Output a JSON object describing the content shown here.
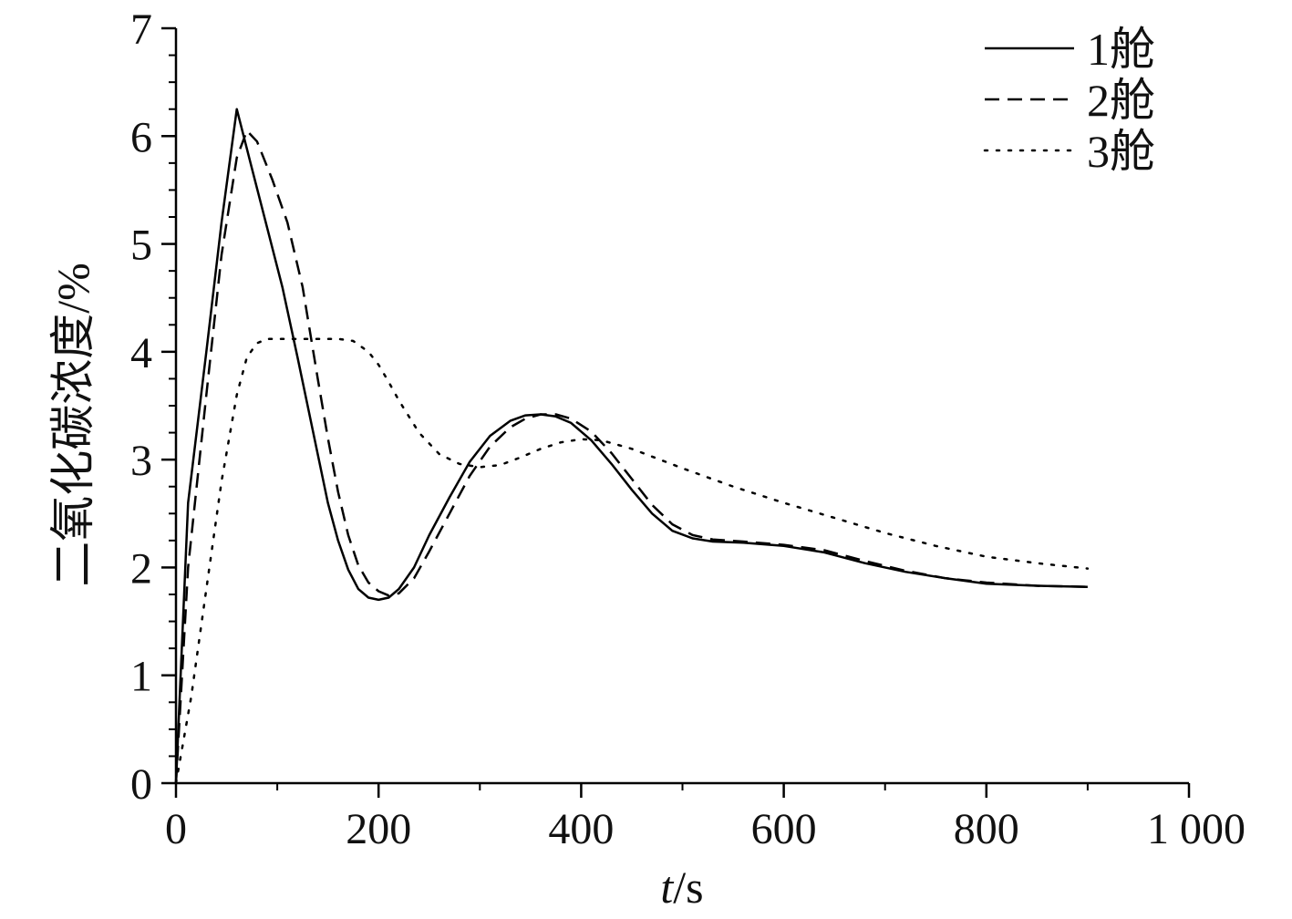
{
  "chart_data": {
    "type": "line",
    "xlabel": "t/s",
    "xlabel_parts": {
      "var": "t",
      "rest": "/s"
    },
    "ylabel": "二氧化碳浓度/%",
    "xlim": [
      0,
      1000
    ],
    "ylim": [
      0,
      7
    ],
    "x_ticks": [
      0,
      200,
      400,
      600,
      800,
      1000
    ],
    "x_tick_labels": [
      "0",
      "200",
      "400",
      "600",
      "800",
      "1 000"
    ],
    "y_ticks": [
      0,
      1,
      2,
      3,
      4,
      5,
      6,
      7
    ],
    "y_tick_labels": [
      "0",
      "1",
      "2",
      "3",
      "4",
      "5",
      "6",
      "7"
    ],
    "grid": false,
    "legend_position": "top-right",
    "series": [
      {
        "name": "1舱",
        "style": "solid",
        "color": "#000000",
        "x": [
          0,
          12,
          30,
          45,
          60,
          75,
          90,
          105,
          120,
          130,
          140,
          150,
          160,
          170,
          180,
          190,
          200,
          210,
          220,
          235,
          250,
          270,
          290,
          310,
          330,
          345,
          360,
          375,
          390,
          410,
          430,
          450,
          470,
          490,
          510,
          530,
          560,
          600,
          640,
          680,
          720,
          760,
          800,
          850,
          900
        ],
        "y": [
          0,
          2.6,
          4.0,
          5.2,
          6.25,
          5.7,
          5.15,
          4.6,
          3.95,
          3.5,
          3.05,
          2.6,
          2.25,
          1.98,
          1.8,
          1.72,
          1.7,
          1.72,
          1.8,
          2.0,
          2.3,
          2.65,
          2.98,
          3.22,
          3.36,
          3.41,
          3.42,
          3.4,
          3.34,
          3.18,
          2.96,
          2.72,
          2.5,
          2.34,
          2.27,
          2.24,
          2.23,
          2.2,
          2.14,
          2.04,
          1.96,
          1.9,
          1.85,
          1.83,
          1.82
        ]
      },
      {
        "name": "2舱",
        "style": "dashed",
        "color": "#000000",
        "x": [
          0,
          12,
          30,
          45,
          60,
          70,
          80,
          95,
          110,
          125,
          140,
          150,
          160,
          170,
          180,
          190,
          200,
          210,
          220,
          235,
          250,
          270,
          290,
          310,
          330,
          345,
          360,
          375,
          390,
          410,
          430,
          450,
          470,
          490,
          510,
          530,
          560,
          600,
          640,
          680,
          720,
          760,
          800,
          850,
          900
        ],
        "y": [
          0,
          2.0,
          3.6,
          4.9,
          5.8,
          6.05,
          5.95,
          5.6,
          5.2,
          4.6,
          3.75,
          3.2,
          2.7,
          2.3,
          2.02,
          1.86,
          1.78,
          1.74,
          1.76,
          1.9,
          2.15,
          2.5,
          2.85,
          3.12,
          3.3,
          3.38,
          3.42,
          3.42,
          3.38,
          3.26,
          3.06,
          2.82,
          2.58,
          2.4,
          2.3,
          2.26,
          2.24,
          2.21,
          2.16,
          2.06,
          1.97,
          1.9,
          1.86,
          1.83,
          1.82
        ]
      },
      {
        "name": "3舱",
        "style": "dotted",
        "color": "#000000",
        "x": [
          0,
          15,
          30,
          45,
          60,
          70,
          80,
          90,
          100,
          130,
          160,
          175,
          190,
          200,
          210,
          220,
          240,
          260,
          280,
          300,
          320,
          340,
          360,
          380,
          400,
          420,
          450,
          500,
          550,
          600,
          650,
          700,
          750,
          800,
          850,
          900
        ],
        "y": [
          0,
          0.8,
          1.8,
          2.8,
          3.6,
          3.95,
          4.08,
          4.12,
          4.12,
          4.12,
          4.12,
          4.1,
          4.0,
          3.88,
          3.72,
          3.55,
          3.25,
          3.05,
          2.96,
          2.93,
          2.95,
          3.02,
          3.1,
          3.16,
          3.19,
          3.18,
          3.1,
          2.92,
          2.75,
          2.6,
          2.46,
          2.32,
          2.2,
          2.1,
          2.04,
          1.99
        ]
      }
    ]
  }
}
